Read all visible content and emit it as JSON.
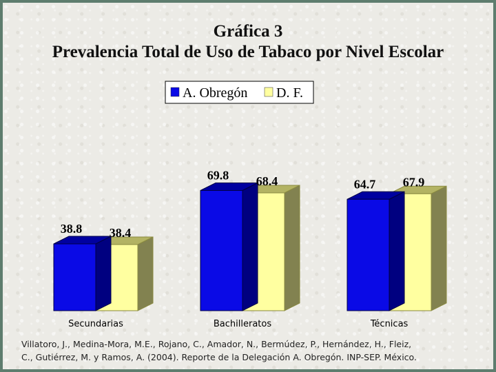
{
  "title_line1": "Gráfica 3",
  "title_line2": "Prevalencia Total de Uso de Tabaco por Nivel Escolar",
  "citation_line1": "Villatoro, J., Medina-Mora, M.E., Rojano, C., Amador, N., Bermúdez, P., Hernández, H., Fleiz,",
  "citation_line2": "C., Gutiérrez, M. y Ramos, A. (2004). Reporte de la Delegación A. Obregón. INP-SEP. México.",
  "colors": {
    "obregon_front": "#0a0ae6",
    "obregon_top": "#0000a0",
    "obregon_side": "#000080",
    "df_front": "#ffffa0",
    "df_top": "#b3b363",
    "df_side": "#828250",
    "background": "#ecebe6",
    "frame": "#5e7d6e"
  },
  "chart_data": {
    "type": "bar",
    "categories": [
      "Secundarias",
      "Bachilleratos",
      "Técnicas"
    ],
    "series": [
      {
        "name": "A. Obregón",
        "values": [
          38.8,
          69.8,
          64.7
        ]
      },
      {
        "name": "D. F.",
        "values": [
          38.4,
          68.4,
          67.9
        ]
      }
    ],
    "value_labels": [
      [
        "38.8",
        "69.8",
        "64.7"
      ],
      [
        "38.4",
        "68.4",
        "67.9"
      ]
    ],
    "ylim": [
      0,
      80
    ],
    "legend_position": "top-center",
    "grid": false,
    "three_d": true
  }
}
